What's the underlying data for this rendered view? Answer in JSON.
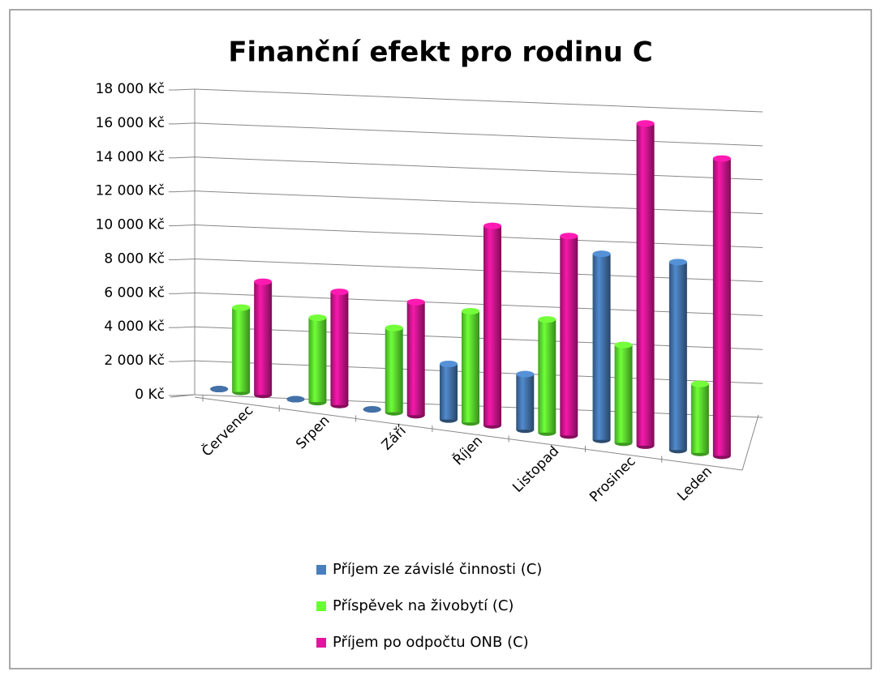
{
  "chart_data": {
    "type": "bar3d",
    "title": "Finanční efekt pro rodinu C",
    "categories": [
      "Červenec",
      "Srpen",
      "Září",
      "Říjen",
      "Listopad",
      "Prosinec",
      "Leden"
    ],
    "series": [
      {
        "name": "Příjem ze závislé činnosti (C)",
        "color": "#4a7ebb",
        "values": [
          0,
          0,
          0,
          2900,
          2900,
          9700,
          9800
        ]
      },
      {
        "name": "Příspěvek na živobytí (C)",
        "color": "#66ff33",
        "values": [
          4400,
          4400,
          4400,
          5800,
          5900,
          5100,
          3600
        ]
      },
      {
        "name": "Příjem po odpočtu ONB (C)",
        "color": "#e0179b",
        "values": [
          5900,
          5900,
          5900,
          10400,
          10400,
          16800,
          15500
        ]
      }
    ],
    "ylim": [
      0,
      18000
    ],
    "yticks": [
      {
        "value": 0,
        "label": "0 Kč"
      },
      {
        "value": 2000,
        "label": "2 000 Kč"
      },
      {
        "value": 4000,
        "label": "4 000 Kč"
      },
      {
        "value": 6000,
        "label": "6 000 Kč"
      },
      {
        "value": 8000,
        "label": "8 000 Kč"
      },
      {
        "value": 10000,
        "label": "10 000 Kč"
      },
      {
        "value": 12000,
        "label": "12 000 Kč"
      },
      {
        "value": 14000,
        "label": "14 000 Kč"
      },
      {
        "value": 16000,
        "label": "16 000 Kč"
      },
      {
        "value": 18000,
        "label": "18 000 Kč"
      }
    ],
    "grid": true,
    "legend": "bottom"
  }
}
